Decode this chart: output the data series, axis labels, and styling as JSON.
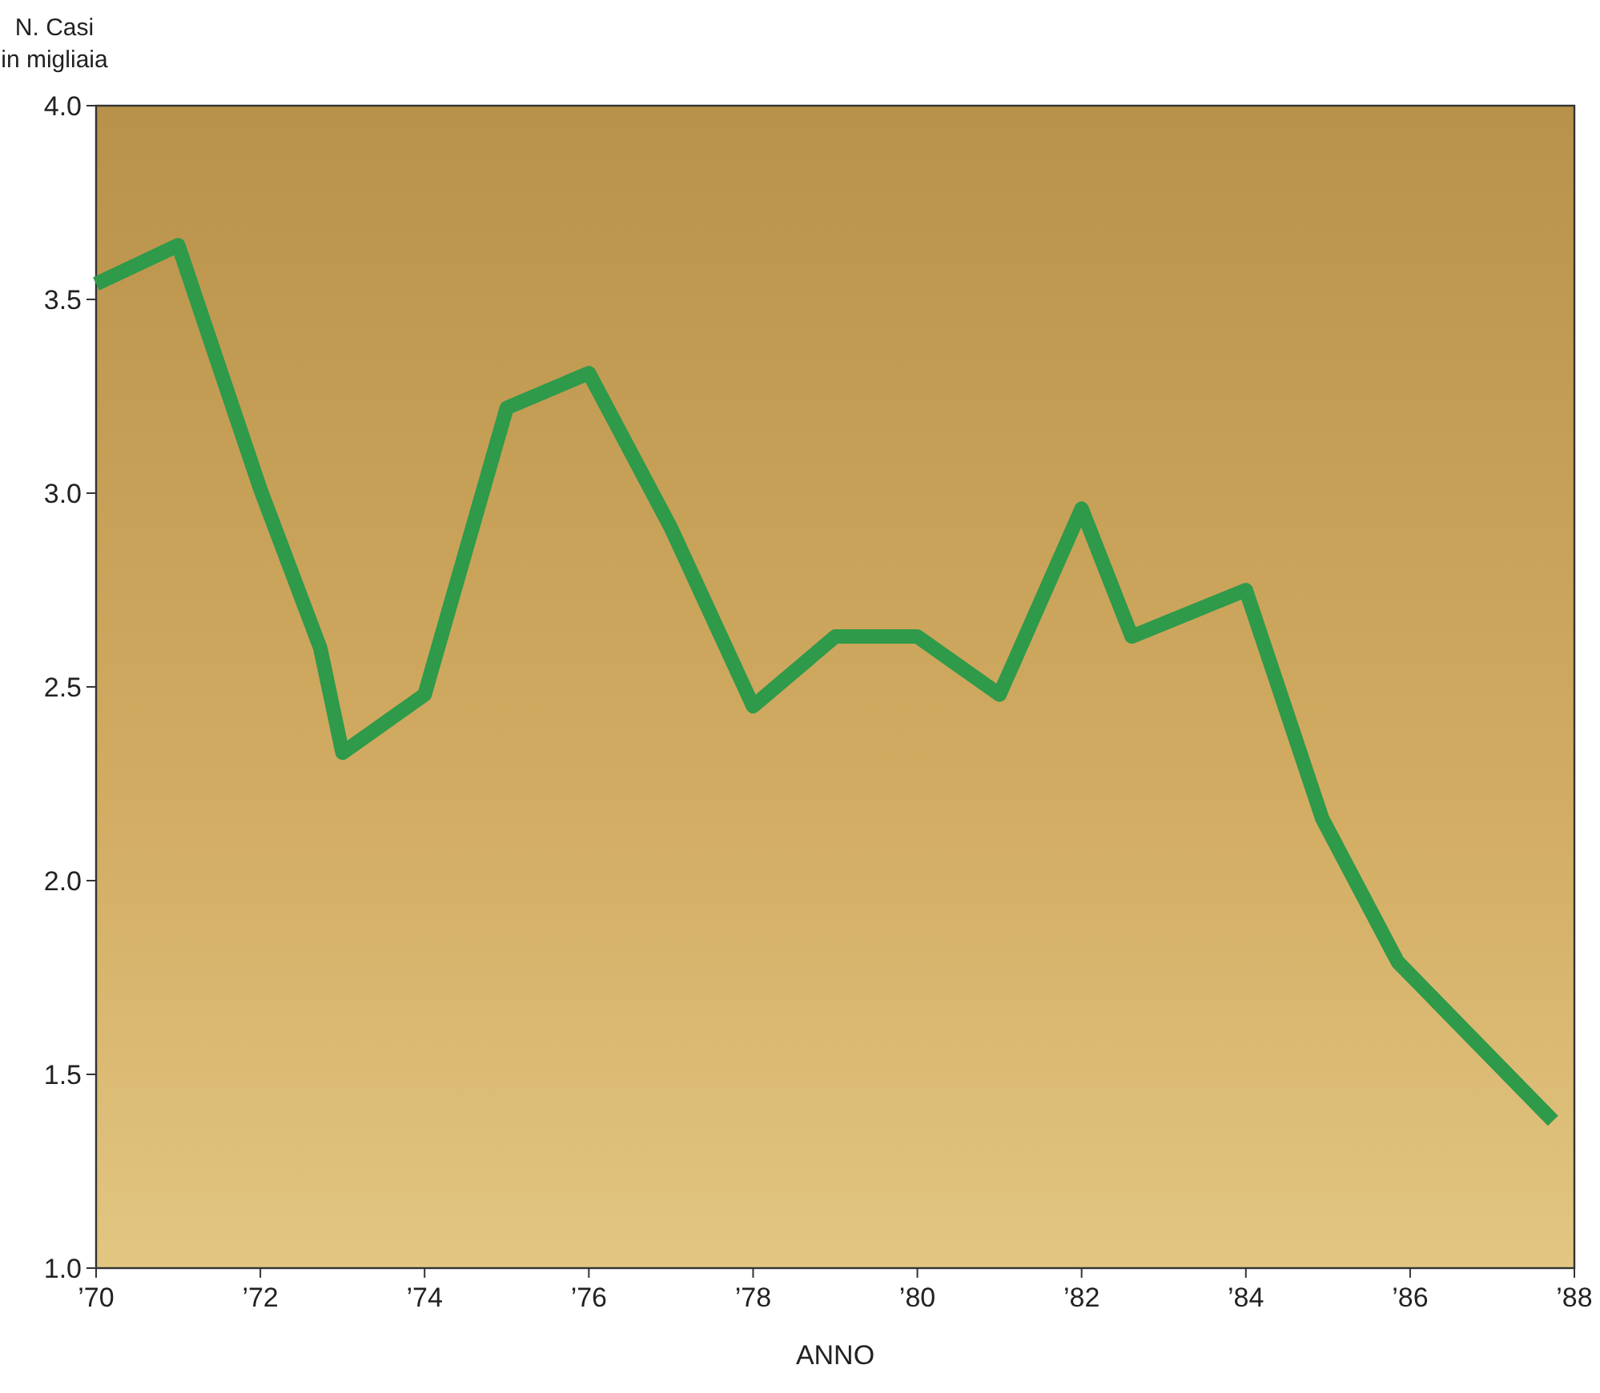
{
  "chart_data": {
    "type": "line",
    "xlabel": "ANNO",
    "ylabel": "N. Casi\nin migliaia",
    "x": [
      1970,
      1971,
      1972,
      1972.73,
      1973,
      1974,
      1975,
      1976,
      1977,
      1978,
      1979,
      1980,
      1981,
      1982,
      1982.61,
      1984,
      1984.93,
      1985.85,
      1987.74
    ],
    "series": [
      {
        "color": "#2e9a4a",
        "values": [
          3.54,
          3.64,
          3.01,
          2.6,
          2.33,
          2.48,
          3.22,
          3.31,
          2.91,
          2.45,
          2.63,
          2.63,
          2.48,
          2.96,
          2.63,
          2.75,
          2.16,
          1.79,
          1.38
        ]
      }
    ],
    "xlim": [
      1970,
      1988
    ],
    "xticks": [
      {
        "value": 1970,
        "label": "’70"
      },
      {
        "value": 1972,
        "label": "’72"
      },
      {
        "value": 1974,
        "label": "’74"
      },
      {
        "value": 1976,
        "label": "’76"
      },
      {
        "value": 1978,
        "label": "’78"
      },
      {
        "value": 1980,
        "label": "’80"
      },
      {
        "value": 1982,
        "label": "’82"
      },
      {
        "value": 1984,
        "label": "’84"
      },
      {
        "value": 1986,
        "label": "’86"
      },
      {
        "value": 1988,
        "label": "’88"
      }
    ],
    "ylim": [
      1.0,
      4.0
    ],
    "yticks": [
      {
        "value": 1,
        "label": "1.0"
      },
      {
        "value": 1.5,
        "label": "1.5"
      },
      {
        "value": 2,
        "label": "2.0"
      },
      {
        "value": 2.5,
        "label": "2.5"
      },
      {
        "value": 3,
        "label": "3.0"
      },
      {
        "value": 3.5,
        "label": "3.5"
      },
      {
        "value": 4,
        "label": "4.0"
      }
    ],
    "grid": false,
    "marker": "none",
    "line_style": "solid"
  }
}
